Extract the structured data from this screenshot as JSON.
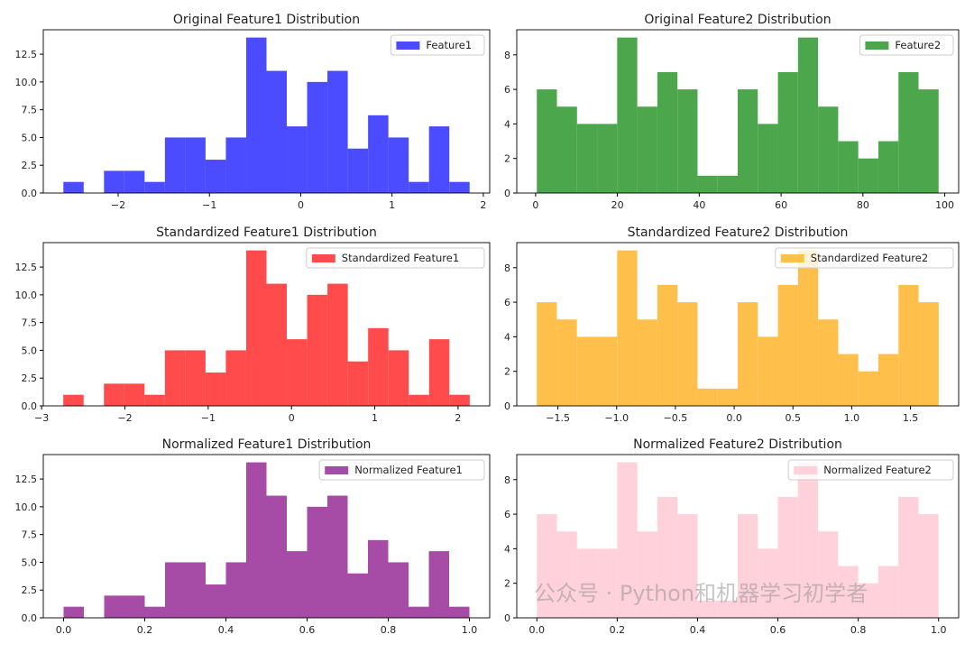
{
  "chart_data": [
    {
      "type": "bar",
      "title": "Original Feature1 Distribution",
      "legend": "Feature1",
      "legend_placement": "top-right",
      "color": "#4b4bff",
      "bin_range": [
        -2.6,
        1.85
      ],
      "values": [
        1,
        0,
        2,
        2,
        1,
        5,
        5,
        3,
        5,
        14,
        11,
        6,
        10,
        11,
        4,
        7,
        5,
        1,
        6,
        1
      ],
      "xlim": [
        -2.82,
        2.07
      ],
      "xticks": [
        -2,
        -1,
        0,
        1,
        2
      ],
      "xtick_labels": [
        "−2",
        "−1",
        "0",
        "1",
        "2"
      ],
      "ylim": [
        0,
        14.7
      ],
      "yticks": [
        0,
        2.5,
        5,
        7.5,
        10,
        12.5
      ],
      "ytick_labels": [
        "0.0",
        "2.5",
        "5.0",
        "7.5",
        "10.0",
        "12.5"
      ]
    },
    {
      "type": "bar",
      "title": "Original Feature2 Distribution",
      "legend": "Feature2",
      "legend_placement": "top-right",
      "color": "#4ca64c",
      "bin_range": [
        0.3,
        98.5
      ],
      "values": [
        6,
        5,
        4,
        4,
        9,
        5,
        7,
        6,
        1,
        1,
        6,
        4,
        7,
        9,
        5,
        3,
        2,
        3,
        7,
        6
      ],
      "xlim": [
        -4.6,
        103.4
      ],
      "xticks": [
        0,
        20,
        40,
        60,
        80,
        100
      ],
      "xtick_labels": [
        "0",
        "20",
        "40",
        "60",
        "80",
        "100"
      ],
      "ylim": [
        0,
        9.45
      ],
      "yticks": [
        0,
        2,
        4,
        6,
        8
      ],
      "ytick_labels": [
        "0",
        "2",
        "4",
        "6",
        "8"
      ]
    },
    {
      "type": "bar",
      "title": "Standardized Feature1 Distribution",
      "legend": "Standardized Feature1",
      "legend_placement": "top-right",
      "color": "#ff4b4b",
      "bin_range": [
        -2.74,
        2.14
      ],
      "values": [
        1,
        0,
        2,
        2,
        1,
        5,
        5,
        3,
        5,
        14,
        11,
        6,
        10,
        11,
        4,
        7,
        5,
        1,
        6,
        1
      ],
      "xlim": [
        -2.98,
        2.38
      ],
      "xticks": [
        -3,
        -2,
        -1,
        0,
        1,
        2
      ],
      "xtick_labels": [
        "−3",
        "−2",
        "−1",
        "0",
        "1",
        "2"
      ],
      "ylim": [
        0,
        14.7
      ],
      "yticks": [
        0,
        2.5,
        5,
        7.5,
        10,
        12.5
      ],
      "ytick_labels": [
        "0.0",
        "2.5",
        "5.0",
        "7.5",
        "10.0",
        "12.5"
      ]
    },
    {
      "type": "bar",
      "title": "Standardized Feature2 Distribution",
      "legend": "Standardized Feature2",
      "legend_placement": "top-right",
      "color": "#ffc04b",
      "bin_range": [
        -1.68,
        1.74
      ],
      "values": [
        6,
        5,
        4,
        4,
        9,
        5,
        7,
        6,
        1,
        1,
        6,
        4,
        7,
        9,
        5,
        3,
        2,
        3,
        7,
        6
      ],
      "xlim": [
        -1.85,
        1.91
      ],
      "xticks": [
        -1.5,
        -1,
        -0.5,
        0,
        0.5,
        1,
        1.5
      ],
      "xtick_labels": [
        "−1.5",
        "−1.0",
        "−0.5",
        "0.0",
        "0.5",
        "1.0",
        "1.5"
      ],
      "ylim": [
        0,
        9.45
      ],
      "yticks": [
        0,
        2,
        4,
        6,
        8
      ],
      "ytick_labels": [
        "0",
        "2",
        "4",
        "6",
        "8"
      ]
    },
    {
      "type": "bar",
      "title": "Normalized Feature1 Distribution",
      "legend": "Normalized Feature1",
      "legend_placement": "top-right",
      "color": "#a64ca6",
      "bin_range": [
        0,
        1
      ],
      "values": [
        1,
        0,
        2,
        2,
        1,
        5,
        5,
        3,
        5,
        14,
        11,
        6,
        10,
        11,
        4,
        7,
        5,
        1,
        6,
        1
      ],
      "xlim": [
        -0.05,
        1.05
      ],
      "xticks": [
        0,
        0.2,
        0.4,
        0.6,
        0.8,
        1
      ],
      "xtick_labels": [
        "0.0",
        "0.2",
        "0.4",
        "0.6",
        "0.8",
        "1.0"
      ],
      "ylim": [
        0,
        14.7
      ],
      "yticks": [
        0,
        2.5,
        5,
        7.5,
        10,
        12.5
      ],
      "ytick_labels": [
        "0.0",
        "2.5",
        "5.0",
        "7.5",
        "10.0",
        "12.5"
      ]
    },
    {
      "type": "bar",
      "title": "Normalized Feature2 Distribution",
      "legend": "Normalized Feature2",
      "legend_placement": "top-right",
      "color": "#ffd1da",
      "bin_range": [
        0,
        1
      ],
      "values": [
        6,
        5,
        4,
        4,
        9,
        5,
        7,
        6,
        1,
        1,
        6,
        4,
        7,
        9,
        5,
        3,
        2,
        3,
        7,
        6
      ],
      "xlim": [
        -0.05,
        1.05
      ],
      "xticks": [
        0,
        0.2,
        0.4,
        0.6,
        0.8,
        1
      ],
      "xtick_labels": [
        "0.0",
        "0.2",
        "0.4",
        "0.6",
        "0.8",
        "1.0"
      ],
      "ylim": [
        0,
        9.45
      ],
      "yticks": [
        0,
        2,
        4,
        6,
        8
      ],
      "ytick_labels": [
        "0",
        "2",
        "4",
        "6",
        "8"
      ]
    }
  ],
  "watermark": "公众号 · Python和机器学习初学者"
}
